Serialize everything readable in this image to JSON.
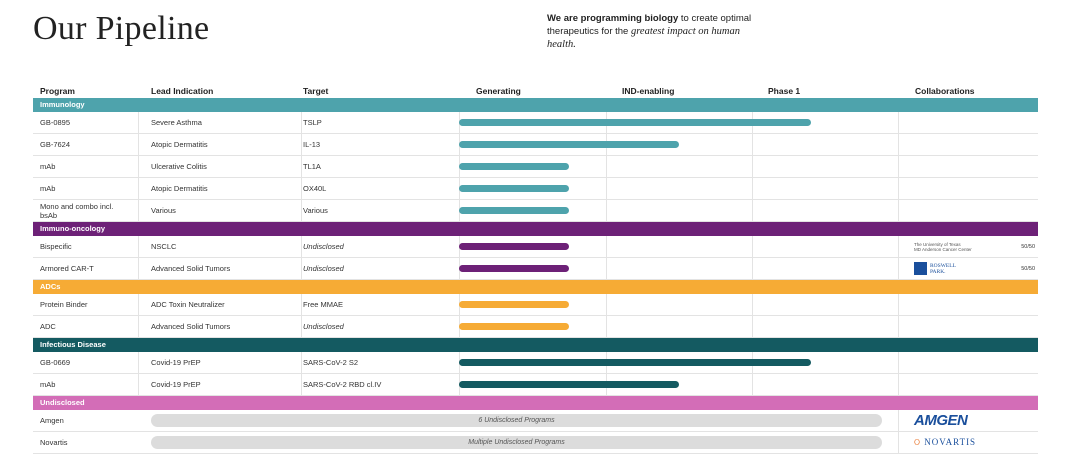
{
  "header": {
    "title": "Our Pipeline",
    "tagline_bold": "We are programming biology",
    "tagline_rest": " to create optimal therapeutics for the ",
    "tagline_italic": "greatest impact on human health."
  },
  "columns": [
    "Program",
    "Lead Indication",
    "Target",
    "Generating",
    "IND-enabling",
    "Phase 1",
    "Collaborations"
  ],
  "colors": {
    "immunology": "#4ea3ac",
    "immuno_oncology": "#6d2177",
    "adcs": "#f6ab35",
    "infectious": "#145a61",
    "undisclosed": "#d36db7",
    "pill": "#dcdcdc"
  },
  "chart_data": {
    "type": "bar",
    "title": "Our Pipeline",
    "stages": [
      "Generating",
      "IND-enabling",
      "Phase 1"
    ],
    "progress_unit": "stage-widths from start of Generating (3 = end of Phase 1)",
    "sections": [
      {
        "name": "Immunology",
        "color_key": "immunology",
        "rows": [
          {
            "program": "GB-0895",
            "indication": "Severe Asthma",
            "target": "TSLP",
            "target_italic": false,
            "progress": 2.4,
            "collab": null
          },
          {
            "program": "GB-7624",
            "indication": "Atopic Dermatitis",
            "target": "IL-13",
            "target_italic": false,
            "progress": 1.5,
            "collab": null
          },
          {
            "program": "mAb",
            "indication": "Ulcerative Colitis",
            "target": "TL1A",
            "target_italic": false,
            "progress": 0.75,
            "collab": null
          },
          {
            "program": "mAb",
            "indication": "Atopic Dermatitis",
            "target": "OX40L",
            "target_italic": false,
            "progress": 0.75,
            "collab": null
          },
          {
            "program": "Mono and combo incl. bsAb",
            "indication": "Various",
            "target": "Various",
            "target_italic": false,
            "progress": 0.75,
            "collab": null
          }
        ]
      },
      {
        "name": "Immuno-oncology",
        "color_key": "immuno_oncology",
        "rows": [
          {
            "program": "Bispecific",
            "indication": "NSCLC",
            "target": "Undisclosed",
            "target_italic": true,
            "progress": 0.75,
            "collab": {
              "kind": "text",
              "line1": "The University of Texas",
              "line2": "MD Anderson Cancer Center",
              "split": "50/50"
            }
          },
          {
            "program": "Armored CAR-T",
            "indication": "Advanced Solid Tumors",
            "target": "Undisclosed",
            "target_italic": true,
            "progress": 0.75,
            "collab": {
              "kind": "roswell",
              "line1": "ROSWELL",
              "line2": "PARK.",
              "split": "50/50"
            }
          }
        ]
      },
      {
        "name": "ADCs",
        "color_key": "adcs",
        "rows": [
          {
            "program": "Protein Binder",
            "indication": "ADC Toxin Neutralizer",
            "target": "Free MMAE",
            "target_italic": false,
            "progress": 0.75,
            "collab": null
          },
          {
            "program": "ADC",
            "indication": "Advanced Solid Tumors",
            "target": "Undisclosed",
            "target_italic": true,
            "progress": 0.75,
            "collab": null
          }
        ]
      },
      {
        "name": "Infectious Disease",
        "color_key": "infectious",
        "rows": [
          {
            "program": "GB-0669",
            "indication": "Covid-19 PrEP",
            "target": "SARS-CoV-2 S2",
            "target_italic": false,
            "progress": 2.4,
            "collab": null
          },
          {
            "program": "mAb",
            "indication": "Covid-19 PrEP",
            "target": "SARS-CoV-2 RBD cl.IV",
            "target_italic": false,
            "progress": 1.5,
            "collab": null
          }
        ]
      },
      {
        "name": "Undisclosed",
        "color_key": "undisclosed",
        "rows": [
          {
            "program": "Amgen",
            "pill": "6 Undisclosed Programs",
            "collab": {
              "kind": "amgen",
              "line1": "AMGEN"
            }
          },
          {
            "program": "Novartis",
            "pill": "Multiple Undisclosed Programs",
            "collab": {
              "kind": "novartis",
              "line1": "NOVARTIS"
            }
          }
        ]
      }
    ]
  }
}
